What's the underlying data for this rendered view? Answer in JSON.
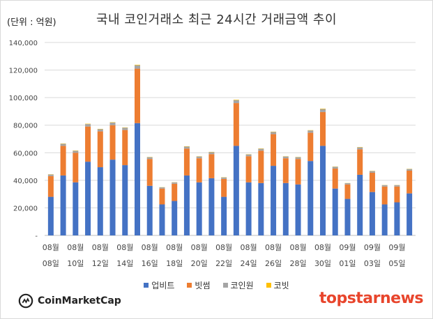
{
  "unit_label": "(단위 : 억원)",
  "chart_data": {
    "type": "bar",
    "stacked": true,
    "title": "국내 코인거래소 최근 24시간 거래금액 추이",
    "ylim": [
      0,
      140000
    ],
    "yticks": [
      "-",
      "20,000",
      "40,000",
      "60,000",
      "80,000",
      "100,000",
      "120,000",
      "140,000"
    ],
    "ytick_values": [
      0,
      20000,
      40000,
      60000,
      80000,
      100000,
      120000,
      140000
    ],
    "grid": true,
    "legend_position": "bottom",
    "x_labels": [
      {
        "month": "08월",
        "day": "08일"
      },
      {
        "month": "08월",
        "day": "10일"
      },
      {
        "month": "08월",
        "day": "12일"
      },
      {
        "month": "08월",
        "day": "14일"
      },
      {
        "month": "08월",
        "day": "16일"
      },
      {
        "month": "08월",
        "day": "18일"
      },
      {
        "month": "08월",
        "day": "20일"
      },
      {
        "month": "08월",
        "day": "22일"
      },
      {
        "month": "08월",
        "day": "24일"
      },
      {
        "month": "08월",
        "day": "26일"
      },
      {
        "month": "08월",
        "day": "28일"
      },
      {
        "month": "08월",
        "day": "30일"
      },
      {
        "month": "09월",
        "day": "01일"
      },
      {
        "month": "09월",
        "day": "03일"
      },
      {
        "month": "09월",
        "day": "05일"
      }
    ],
    "series": [
      {
        "name": "업비트",
        "color": "#4472c4",
        "values": [
          28000,
          43500,
          38500,
          53500,
          49500,
          55000,
          51000,
          81500,
          36000,
          22500,
          25000,
          43500,
          38500,
          41500,
          28000,
          65000,
          38500,
          38000,
          50500,
          38000,
          37000,
          54000,
          65000,
          34000,
          26500,
          44000,
          31500,
          22500,
          24000,
          30500
        ]
      },
      {
        "name": "빗썸",
        "color": "#ed7d31",
        "values": [
          15000,
          21500,
          21500,
          25500,
          26000,
          25000,
          25500,
          39500,
          19500,
          11500,
          12500,
          19500,
          17500,
          17500,
          13000,
          31000,
          19000,
          23500,
          23000,
          18000,
          18500,
          20500,
          24500,
          14500,
          10500,
          18500,
          14000,
          13000,
          11500,
          16500
        ]
      },
      {
        "name": "코인원",
        "color": "#a5a5a5",
        "values": [
          1200,
          1500,
          1400,
          1800,
          1600,
          1900,
          1700,
          2500,
          1300,
          900,
          1000,
          1500,
          1300,
          1400,
          1100,
          2200,
          1300,
          1400,
          1600,
          1300,
          1300,
          1700,
          2200,
          1300,
          900,
          1400,
          1200,
          1000,
          1000,
          1200
        ]
      },
      {
        "name": "코빗",
        "color": "#ffc000",
        "values": [
          150,
          200,
          200,
          250,
          200,
          250,
          200,
          350,
          150,
          100,
          100,
          200,
          150,
          200,
          150,
          300,
          150,
          200,
          200,
          150,
          150,
          200,
          300,
          150,
          100,
          200,
          150,
          100,
          100,
          150
        ]
      }
    ]
  },
  "branding": {
    "left": "CoinMarketCap",
    "right": "topstarnews"
  }
}
